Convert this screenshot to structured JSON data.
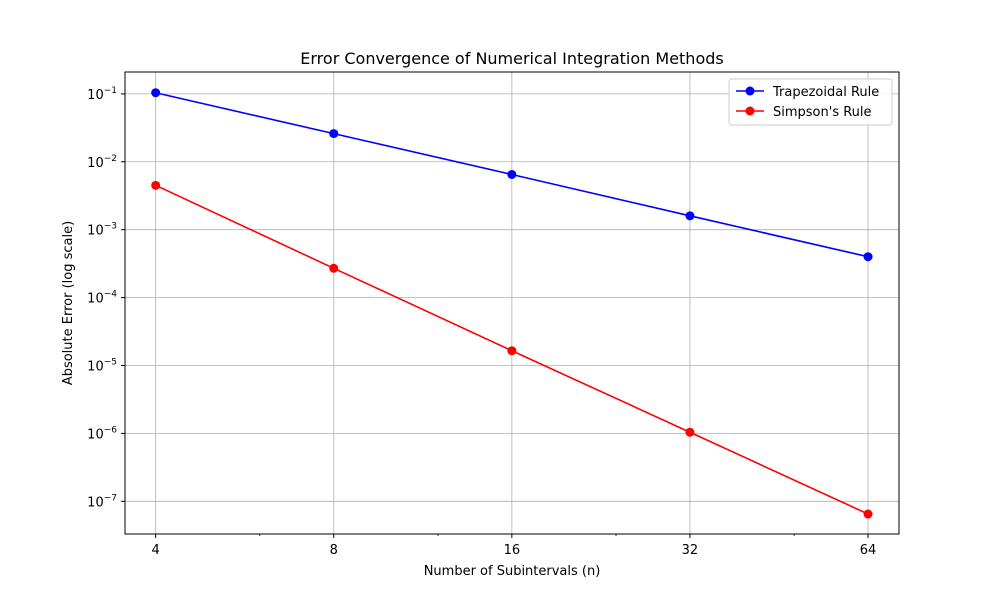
{
  "chart_data": {
    "type": "line",
    "title": "Error Convergence of Numerical Integration Methods",
    "xlabel": "Number of Subintervals (n)",
    "ylabel": "Absolute Error (log scale)",
    "x_scale": "log2",
    "y_scale": "log10",
    "x": [
      4,
      8,
      16,
      32,
      64
    ],
    "x_ticks": [
      "4",
      "8",
      "16",
      "32",
      "64"
    ],
    "y_ticks": [
      {
        "base": "10",
        "exp": "−1",
        "value": 0.1
      },
      {
        "base": "10",
        "exp": "−2",
        "value": 0.01
      },
      {
        "base": "10",
        "exp": "−3",
        "value": 0.001
      },
      {
        "base": "10",
        "exp": "−4",
        "value": 0.0001
      },
      {
        "base": "10",
        "exp": "−5",
        "value": 1e-05
      },
      {
        "base": "10",
        "exp": "−6",
        "value": 1e-06
      },
      {
        "base": "10",
        "exp": "−7",
        "value": 1e-07
      }
    ],
    "xlim": [
      3.55,
      72.2
    ],
    "ylim": [
      3.3e-08,
      0.21
    ],
    "grid": true,
    "legend_position": "top-right",
    "series": [
      {
        "name": "Trapezoidal Rule",
        "color": "#0000ff",
        "values": [
          0.104,
          0.026,
          0.0065,
          0.0016,
          0.0004
        ]
      },
      {
        "name": "Simpson's Rule",
        "color": "#ff0000",
        "values": [
          0.0045,
          0.00027,
          1.65e-05,
          1.04e-06,
          6.5e-08
        ]
      }
    ]
  }
}
